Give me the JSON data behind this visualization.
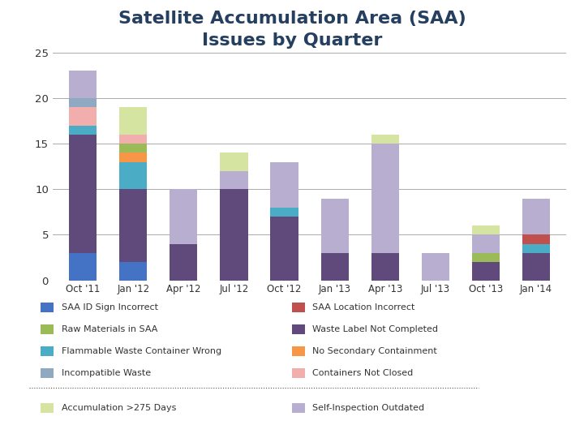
{
  "quarters": [
    "Oct '11",
    "Jan '12",
    "Apr '12",
    "Jul '12",
    "Oct '12",
    "Jan '13",
    "Apr '13",
    "Jul '13",
    "Oct '13",
    "Jan '14"
  ],
  "series": [
    {
      "name": "SAA ID Sign Incorrect",
      "color": "#4472C4",
      "values": [
        3,
        2,
        0,
        0,
        0,
        0,
        0,
        0,
        0,
        0
      ]
    },
    {
      "name": "Waste Label Not Completed",
      "color": "#604A7B",
      "values": [
        13,
        8,
        4,
        10,
        7,
        3,
        3,
        0,
        2,
        3
      ]
    },
    {
      "name": "Flammable Waste Container Wrong",
      "color": "#4BACC6",
      "values": [
        1,
        3,
        0,
        0,
        1,
        0,
        0,
        0,
        0,
        1
      ]
    },
    {
      "name": "No Secondary Containment",
      "color": "#F79646",
      "values": [
        0,
        1,
        0,
        0,
        0,
        0,
        0,
        0,
        0,
        0
      ]
    },
    {
      "name": "Raw Materials in SAA",
      "color": "#9BBB59",
      "values": [
        0,
        1,
        0,
        0,
        0,
        0,
        0,
        0,
        1,
        0
      ]
    },
    {
      "name": "Containers Not Closed",
      "color": "#F2AEAC",
      "values": [
        2,
        1,
        0,
        0,
        0,
        0,
        0,
        0,
        0,
        0
      ]
    },
    {
      "name": "Incompatible Waste",
      "color": "#8EA9C1",
      "values": [
        1,
        0,
        0,
        0,
        0,
        0,
        0,
        0,
        0,
        0
      ]
    },
    {
      "name": "SAA Location Incorrect",
      "color": "#C0504D",
      "values": [
        0,
        0,
        0,
        0,
        0,
        0,
        0,
        0,
        0,
        1
      ]
    },
    {
      "name": "Self-Inspection Outdated",
      "color": "#B8AECF",
      "values": [
        3,
        0,
        6,
        2,
        5,
        6,
        12,
        3,
        2,
        4
      ]
    },
    {
      "name": "Accumulation >275 Days",
      "color": "#D6E4A1",
      "values": [
        0,
        3,
        0,
        2,
        0,
        0,
        1,
        0,
        1,
        0
      ]
    }
  ],
  "title_line1": "Satellite Accumulation Area (SAA)",
  "title_line2": "Issues by Quarter",
  "title_color": "#243F60",
  "title_fontsize": 16,
  "ylim": [
    0,
    25
  ],
  "yticks": [
    0,
    5,
    10,
    15,
    20,
    25
  ],
  "background_color": "#FFFFFF",
  "grid_color": "#AAAAAA",
  "bar_width": 0.55,
  "legend_col1": [
    [
      "SAA ID Sign Incorrect",
      "#4472C4"
    ],
    [
      "Raw Materials in SAA",
      "#9BBB59"
    ],
    [
      "Flammable Waste Container Wrong",
      "#4BACC6"
    ],
    [
      "Incompatible Waste",
      "#8EA9C1"
    ]
  ],
  "legend_col2": [
    [
      "SAA Location Incorrect",
      "#C0504D"
    ],
    [
      "Waste Label Not Completed",
      "#604A7B"
    ],
    [
      "No Secondary Containment",
      "#F79646"
    ],
    [
      "Containers Not Closed",
      "#F2AEAC"
    ]
  ],
  "legend_bottom_col1": [
    "Accumulation >275 Days",
    "#D6E4A1"
  ],
  "legend_bottom_col2": [
    "Self-Inspection Outdated",
    "#B8AECF"
  ]
}
